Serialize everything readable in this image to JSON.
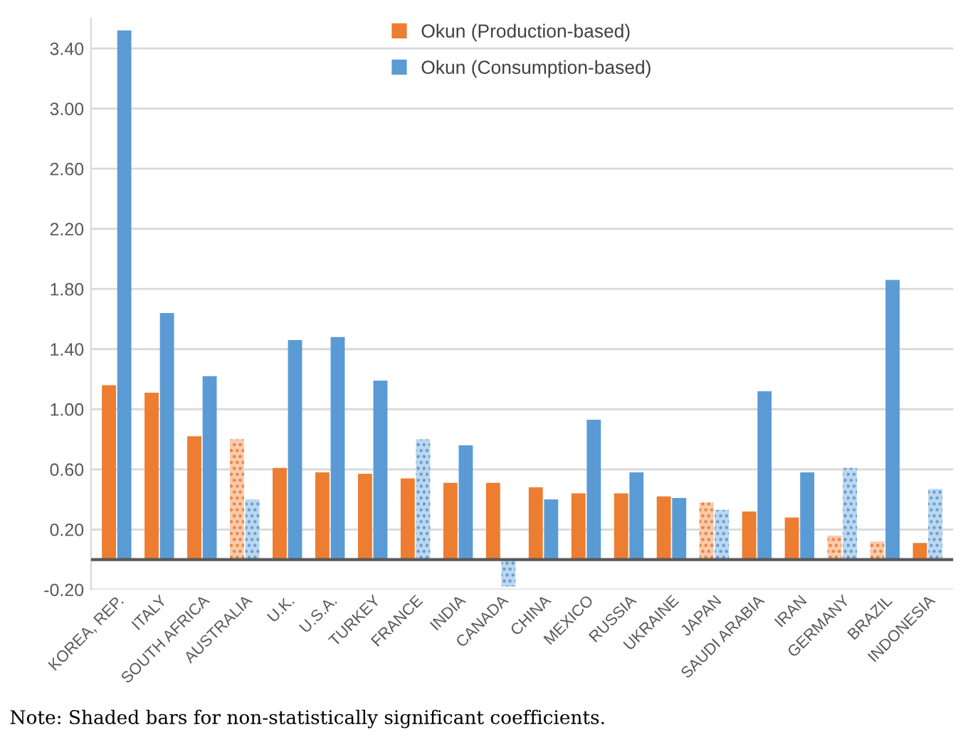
{
  "chart_data": {
    "type": "bar",
    "categories": [
      "KOREA, REP.",
      "ITALY",
      "SOUTH AFRICA",
      "AUSTRALIA",
      "U.K.",
      "U.S.A.",
      "TURKEY",
      "FRANCE",
      "INDIA",
      "CANADA",
      "CHINA",
      "MEXICO",
      "RUSSIA",
      "UKRAINE",
      "JAPAN",
      "SAUDI ARABIA",
      "IRAN",
      "GERMANY",
      "BRAZIL",
      "INDONESIA"
    ],
    "series": [
      {
        "name": "Okun (Production-based)",
        "color": "#ed7d31",
        "values": [
          1.16,
          1.11,
          0.82,
          0.8,
          0.61,
          0.58,
          0.57,
          0.54,
          0.51,
          0.51,
          0.48,
          0.44,
          0.44,
          0.42,
          0.38,
          0.32,
          0.28,
          0.16,
          0.12,
          0.11
        ],
        "colors": [
          "#ed7d31",
          "#ed7d31",
          "#ed7d31",
          "#f8cbad",
          "#ed7d31",
          "#ed7d31",
          "#ed7d31",
          "#ed7d31",
          "#ed7d31",
          "#ed7d31",
          "#ed7d31",
          "#ed7d31",
          "#ed7d31",
          "#ed7d31",
          "#f8cbad",
          "#ed7d31",
          "#ed7d31",
          "#f8cbad",
          "#f8cbad",
          "#ed7d31"
        ]
      },
      {
        "name": "Okun (Consumption-based)",
        "color": "#5b9bd5",
        "values": [
          3.52,
          1.64,
          1.22,
          0.4,
          1.46,
          1.48,
          1.19,
          0.8,
          0.76,
          -0.18,
          0.4,
          0.93,
          0.58,
          0.41,
          0.33,
          1.12,
          0.58,
          0.61,
          1.86,
          0.47
        ],
        "colors": [
          "#5b9bd5",
          "#5b9bd5",
          "#5b9bd5",
          "#bdd7ee",
          "#5b9bd5",
          "#5b9bd5",
          "#5b9bd5",
          "#bdd7ee",
          "#5b9bd5",
          "#bdd7ee",
          "#5b9bd5",
          "#5b9bd5",
          "#5b9bd5",
          "#5b9bd5",
          "#bdd7ee",
          "#5b9bd5",
          "#5b9bd5",
          "#bdd7ee",
          "#5b9bd5",
          "#bdd7ee"
        ]
      }
    ],
    "ylim": [
      -0.2,
      3.6
    ],
    "yticks": [
      {
        "value": -0.2,
        "label": "-0.20"
      },
      {
        "value": 0.2,
        "label": "0.20"
      },
      {
        "value": 0.6,
        "label": "0.60"
      },
      {
        "value": 1.0,
        "label": "1.00"
      },
      {
        "value": 1.4,
        "label": "1.40"
      },
      {
        "value": 1.8,
        "label": "1.80"
      },
      {
        "value": 2.2,
        "label": "2.20"
      },
      {
        "value": 2.6,
        "label": "2.60"
      },
      {
        "value": 3.0,
        "label": "3.00"
      },
      {
        "value": 3.4,
        "label": "3.40"
      }
    ],
    "ref_lines": [
      {
        "axis": "y",
        "value": 0,
        "label": null,
        "color": "#595959"
      }
    ],
    "grid": "y",
    "legend": "top",
    "annotations": [
      "Note: Shaded bars for non-statistically significant coefficients."
    ]
  }
}
